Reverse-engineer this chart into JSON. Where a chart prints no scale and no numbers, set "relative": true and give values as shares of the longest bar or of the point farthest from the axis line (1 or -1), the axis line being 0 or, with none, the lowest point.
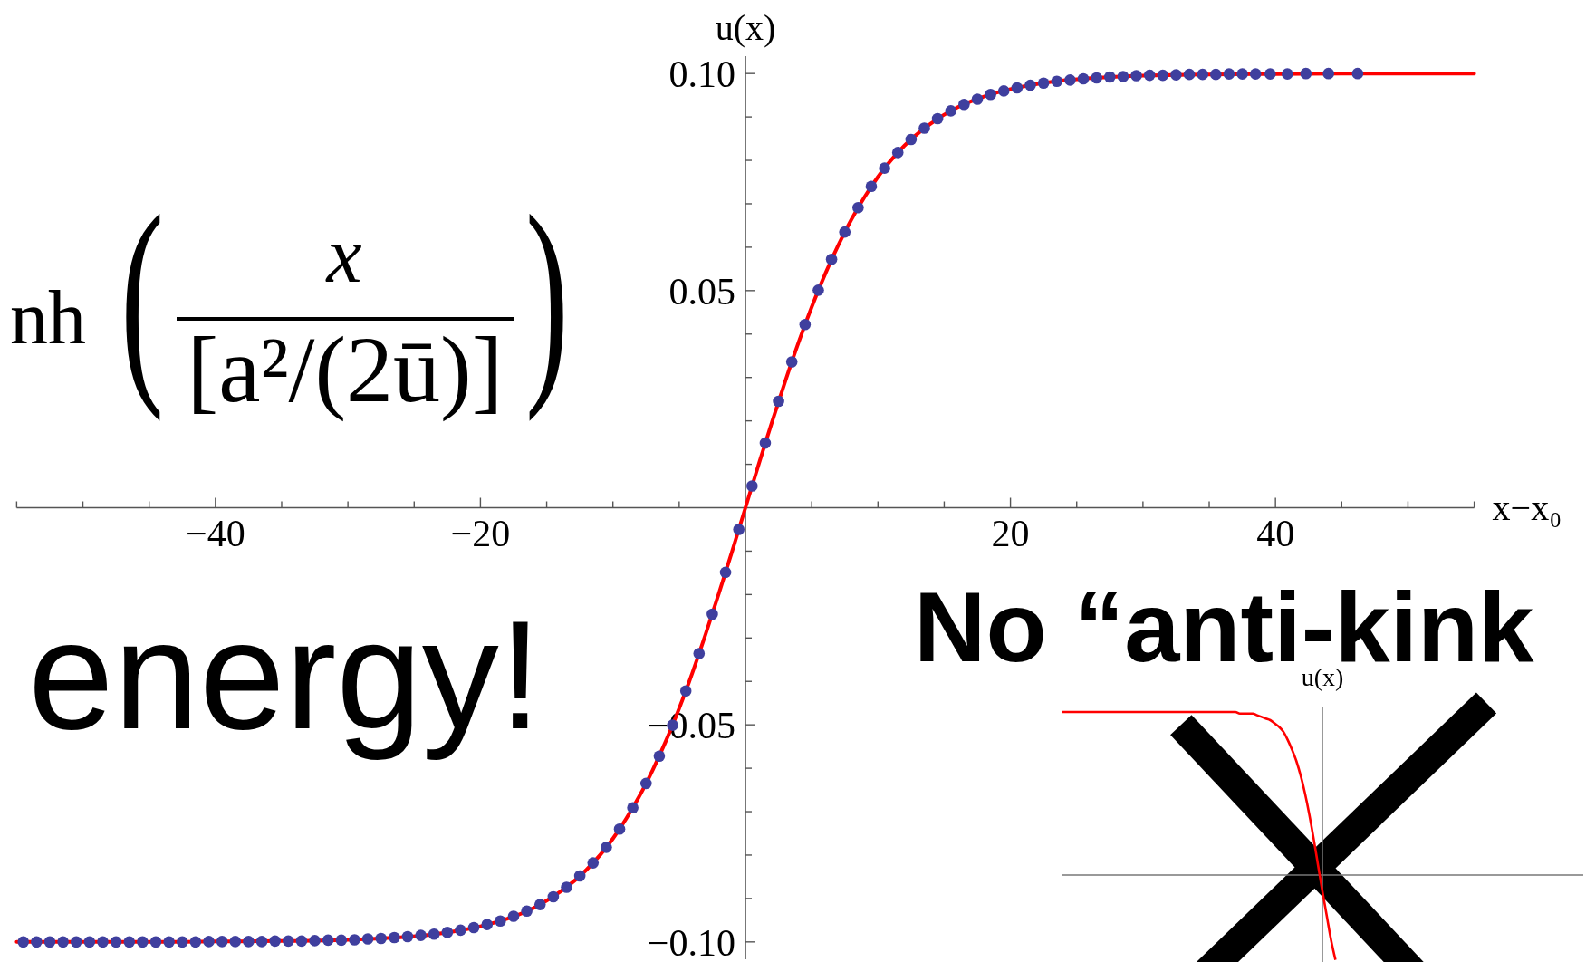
{
  "chart_data": [
    {
      "type": "line",
      "xlabel": "x−x₀",
      "ylabel": "u(x)",
      "annotations": [
        "nh",
        "(",
        "x",
        "[a²/(2ū)]",
        ")",
        "energy!"
      ],
      "xlim": [
        -55,
        55
      ],
      "xticks": [
        {
          "value": -55,
          "label": null
        },
        {
          "value": -50,
          "label": null
        },
        {
          "value": -45,
          "label": null
        },
        {
          "value": -40,
          "label": "−40"
        },
        {
          "value": -35,
          "label": null
        },
        {
          "value": -30,
          "label": null
        },
        {
          "value": -25,
          "label": null
        },
        {
          "value": -20,
          "label": "−20"
        },
        {
          "value": -15,
          "label": null
        },
        {
          "value": -10,
          "label": null
        },
        {
          "value": -5,
          "label": null
        },
        {
          "value": 5,
          "label": null
        },
        {
          "value": 10,
          "label": null
        },
        {
          "value": 15,
          "label": null
        },
        20,
        {
          "value": 25,
          "label": null
        },
        {
          "value": 30,
          "label": null
        },
        {
          "value": 35,
          "label": null
        },
        40,
        {
          "value": 45,
          "label": null
        },
        {
          "value": 50,
          "label": null
        },
        {
          "value": 55,
          "label": null
        }
      ],
      "ylim": [
        -0.104,
        0.104
      ],
      "yticks": [
        {
          "value": -0.1,
          "label": "−0.10"
        },
        {
          "value": -0.09,
          "label": null
        },
        {
          "value": -0.08,
          "label": null
        },
        {
          "value": -0.07,
          "label": null
        },
        {
          "value": -0.06,
          "label": null
        },
        {
          "value": -0.05,
          "label": "−0.05"
        },
        {
          "value": -0.04,
          "label": null
        },
        {
          "value": -0.03,
          "label": null
        },
        {
          "value": -0.02,
          "label": null
        },
        {
          "value": -0.01,
          "label": null
        },
        {
          "value": 0.01,
          "label": null
        },
        {
          "value": 0.02,
          "label": null
        },
        {
          "value": 0.03,
          "label": null
        },
        {
          "value": 0.04,
          "label": null
        },
        0.05,
        {
          "value": 0.06,
          "label": null
        },
        {
          "value": 0.07,
          "label": null
        },
        {
          "value": 0.08,
          "label": null
        },
        {
          "value": 0.09,
          "label": null
        },
        {
          "value": 0.1,
          "label": "0.10"
        }
      ],
      "series": [
        {
          "color": "#ff0000",
          "x": [
            -55,
            -50,
            -45,
            -40,
            -35,
            -30,
            -27,
            -24,
            -22,
            -20,
            -18,
            -16,
            -14,
            -12,
            -10,
            -9,
            -8,
            -7,
            -6,
            -5,
            -4,
            -3,
            -2,
            -1,
            0,
            1,
            2,
            3,
            4,
            5,
            6,
            7,
            8,
            9,
            10,
            12,
            14,
            16,
            18,
            20,
            22,
            24,
            27,
            30,
            35,
            40,
            45,
            50,
            55
          ],
          "values": [
            -0.1,
            -0.1,
            -0.1,
            -0.0999,
            -0.0998,
            -0.0995,
            -0.0991,
            -0.0984,
            -0.0976,
            -0.0964,
            -0.0947,
            -0.0922,
            -0.0885,
            -0.0834,
            -0.0762,
            -0.0716,
            -0.0664,
            -0.0604,
            -0.0537,
            -0.0462,
            -0.038,
            -0.0291,
            -0.0197,
            -0.01,
            0,
            0.01,
            0.0197,
            0.0291,
            0.038,
            0.0462,
            0.0537,
            0.0604,
            0.0664,
            0.0716,
            0.0762,
            0.0834,
            0.0885,
            0.0922,
            0.0947,
            0.0964,
            0.0976,
            0.0984,
            0.0991,
            0.0995,
            0.0998,
            0.0999,
            0.1,
            0.1,
            0.1
          ]
        },
        {
          "type": "scatter",
          "color": "#3f3f9e",
          "marker": "circle",
          "x": [
            -54.5,
            -53.5,
            -52.5,
            -51.5,
            -50.5,
            -49.5,
            -48.5,
            -47.5,
            -46.5,
            -45.5,
            -44.5,
            -43.5,
            -42.5,
            -41.5,
            -40.5,
            -39.5,
            -38.5,
            -37.5,
            -36.5,
            -35.5,
            -34.5,
            -33.5,
            -32.5,
            -31.5,
            -30.5,
            -29.5,
            -28.5,
            -27.5,
            -26.5,
            -25.5,
            -24.5,
            -23.5,
            -22.5,
            -21.5,
            -20.5,
            -19.5,
            -18.5,
            -17.5,
            -16.5,
            -15.5,
            -14.5,
            -13.5,
            -12.5,
            -11.5,
            -10.5,
            -9.5,
            -8.5,
            -7.5,
            -6.5,
            -5.5,
            -4.5,
            -3.5,
            -2.5,
            -1.5,
            -0.5,
            0.5,
            1.5,
            2.5,
            3.5,
            4.5,
            5.5,
            6.5,
            7.5,
            8.5,
            9.5,
            10.5,
            11.5,
            12.5,
            13.5,
            14.5,
            15.5,
            16.5,
            17.5,
            18.5,
            19.5,
            20.5,
            21.5,
            22.5,
            23.5,
            24.5,
            25.5,
            26.5,
            27.5,
            28.5,
            29.5,
            30.5,
            31.5,
            32.5,
            33.5,
            34.5,
            35.5,
            36.5,
            37.5,
            38.5,
            39.6,
            40.9,
            42.3,
            44,
            46.2
          ],
          "values": [
            -0.1,
            -0.1,
            -0.1,
            -0.1,
            -0.1,
            -0.1,
            -0.1,
            -0.1,
            -0.1,
            -0.1,
            -0.1,
            -0.1,
            -0.1,
            -0.1,
            -0.0999,
            -0.0999,
            -0.0999,
            -0.0999,
            -0.0999,
            -0.0998,
            -0.0998,
            -0.0998,
            -0.0997,
            -0.0996,
            -0.0996,
            -0.0995,
            -0.0993,
            -0.0992,
            -0.099,
            -0.0988,
            -0.0985,
            -0.0982,
            -0.0978,
            -0.0973,
            -0.0967,
            -0.096,
            -0.0952,
            -0.0941,
            -0.0929,
            -0.0914,
            -0.0896,
            -0.0874,
            -0.0848,
            -0.0818,
            -0.0782,
            -0.074,
            -0.0691,
            -0.0635,
            -0.0572,
            -0.0501,
            -0.0422,
            -0.0336,
            -0.0245,
            -0.0149,
            -0.005,
            0.005,
            0.0149,
            0.0245,
            0.0336,
            0.0422,
            0.0501,
            0.0572,
            0.0635,
            0.0691,
            0.074,
            0.0782,
            0.0818,
            0.0848,
            0.0874,
            0.0896,
            0.0914,
            0.0929,
            0.0941,
            0.0952,
            0.096,
            0.0967,
            0.0973,
            0.0978,
            0.0982,
            0.0985,
            0.0988,
            0.099,
            0.0992,
            0.0993,
            0.0995,
            0.0996,
            0.0996,
            0.0997,
            0.0998,
            0.0998,
            0.0998,
            0.0999,
            0.0999,
            0.0999,
            0.0999,
            0.0999,
            0.1,
            0.1,
            0.1
          ]
        }
      ]
    },
    {
      "type": "line",
      "title": "No “anti-kink",
      "ylabel": "u(x)",
      "relative": true,
      "categories": [
        null,
        null,
        null,
        null,
        null,
        null,
        null,
        null,
        null,
        null,
        null,
        null,
        null,
        null,
        null,
        null,
        null,
        null,
        null,
        null,
        null,
        null,
        null,
        null,
        null,
        null,
        null,
        null,
        null,
        null,
        null,
        null,
        null,
        null,
        null,
        null,
        null,
        null,
        null,
        null,
        null,
        null,
        null,
        null,
        null,
        null,
        null,
        null,
        null,
        null,
        null,
        null,
        null,
        null,
        null,
        null,
        null,
        null,
        null,
        null,
        null,
        null,
        null,
        null,
        null,
        null,
        null,
        null,
        null,
        null,
        null,
        null,
        null,
        null,
        null,
        null,
        null,
        null,
        null,
        null,
        null,
        null,
        null,
        null,
        null,
        null,
        null,
        null,
        null,
        null,
        null,
        null,
        null,
        null,
        null,
        null,
        null,
        null,
        null,
        null,
        null,
        null,
        null,
        null,
        null,
        null,
        null,
        null,
        null,
        null,
        null,
        null,
        null,
        null,
        null,
        null,
        null,
        null,
        null,
        null,
        null
      ],
      "series": [
        {
          "color": "#ff0000",
          "values": [
            1,
            1,
            1,
            1,
            1,
            1,
            1,
            1,
            1,
            1,
            1,
            1,
            1,
            1,
            1,
            1,
            1,
            1,
            1,
            1,
            1,
            1,
            1,
            1,
            1,
            1,
            1,
            1,
            1,
            1,
            1,
            1,
            1,
            1,
            1,
            1,
            1,
            1,
            1,
            1,
            1,
            0.99,
            0.99,
            0.99,
            0.99,
            0.98,
            0.97,
            0.96,
            0.95,
            0.93,
            0.91,
            0.88,
            0.83,
            0.77,
            0.7,
            0.61,
            0.5,
            0.37,
            0.22,
            0.06,
            -0.1,
            -0.25,
            -0.4,
            -0.52,
            null,
            null,
            null,
            null,
            null,
            null,
            null,
            null,
            null,
            null,
            null,
            null,
            null,
            null,
            null,
            null,
            null,
            null,
            null,
            null,
            null,
            null,
            null,
            null,
            null,
            null,
            null,
            null,
            null,
            null,
            null,
            null,
            null,
            null,
            null,
            null,
            null,
            null,
            null,
            null,
            null,
            null,
            null,
            null,
            null,
            null,
            null,
            null,
            null,
            null,
            null,
            null,
            null,
            null,
            null,
            null,
            null
          ]
        }
      ]
    }
  ]
}
